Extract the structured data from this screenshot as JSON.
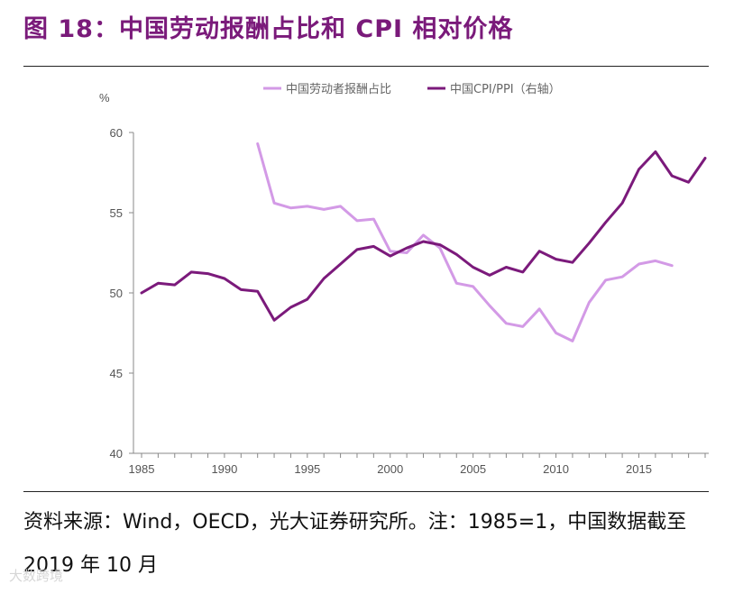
{
  "figure_title": "图 18：中国劳动报酬占比和 CPI 相对价格",
  "source_note": "资料来源：Wind，OECD，光大证券研究所。注：1985=1，中国数据截至 2019 年 10 月",
  "watermark": "大数跨境",
  "colors": {
    "labor_share": "#d39ae6",
    "cpi_ppi": "#7b1a7b",
    "axis": "#888888"
  },
  "chart_data": {
    "type": "line",
    "ylabel": "%",
    "ylim": [
      40,
      60
    ],
    "yticks": [
      40,
      45,
      50,
      55,
      60
    ],
    "xlim": [
      1985,
      2019
    ],
    "xticks": [
      1985,
      1990,
      1995,
      2000,
      2005,
      2010,
      2015
    ],
    "grid": false,
    "legend_position": "top",
    "series": [
      {
        "name": "中国劳动者报酬占比",
        "x": [
          1992,
          1993,
          1994,
          1995,
          1996,
          1997,
          1998,
          1999,
          2000,
          2001,
          2002,
          2003,
          2004,
          2005,
          2006,
          2007,
          2008,
          2009,
          2010,
          2011,
          2012,
          2013,
          2014,
          2015,
          2016,
          2017
        ],
        "values": [
          59.3,
          55.6,
          55.3,
          55.4,
          55.2,
          55.4,
          54.5,
          54.6,
          52.6,
          52.5,
          53.6,
          52.8,
          50.6,
          50.4,
          49.2,
          48.1,
          47.9,
          49.0,
          47.5,
          47.0,
          49.4,
          50.8,
          51.0,
          51.8,
          52.0,
          51.7
        ]
      },
      {
        "name": "中国CPI/PPI（右轴）",
        "x": [
          1985,
          1986,
          1987,
          1988,
          1989,
          1990,
          1991,
          1992,
          1993,
          1994,
          1995,
          1996,
          1997,
          1998,
          1999,
          2000,
          2001,
          2002,
          2003,
          2004,
          2005,
          2006,
          2007,
          2008,
          2009,
          2010,
          2011,
          2012,
          2013,
          2014,
          2015,
          2016,
          2017,
          2018,
          2019
        ],
        "values": [
          50.0,
          50.6,
          50.5,
          51.3,
          51.2,
          50.9,
          50.2,
          50.1,
          48.3,
          49.1,
          49.6,
          50.9,
          51.8,
          52.7,
          52.9,
          52.3,
          52.8,
          53.2,
          53.0,
          52.4,
          51.6,
          51.1,
          51.6,
          51.3,
          52.6,
          52.1,
          51.9,
          53.1,
          54.4,
          55.6,
          57.7,
          58.8,
          57.3,
          56.9,
          58.4
        ]
      }
    ]
  }
}
